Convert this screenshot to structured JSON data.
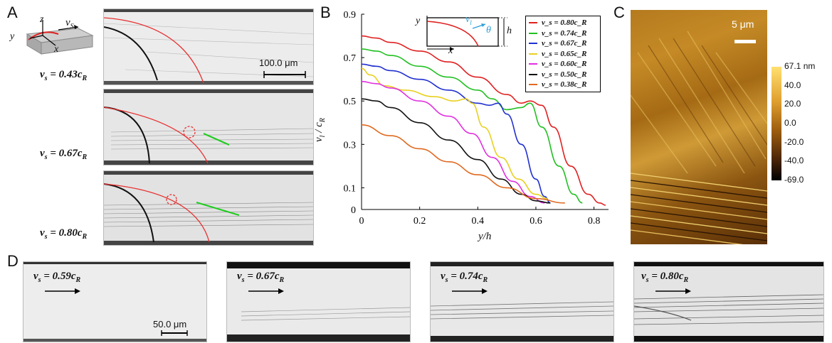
{
  "panel_letters": {
    "a": "A",
    "b": "B",
    "c": "C",
    "d": "D"
  },
  "panelA": {
    "schematic": {
      "y": "y",
      "z": "z",
      "x": "x",
      "vs": "v",
      "vs_sub": "S"
    },
    "scalebar": "100.0 μm",
    "rows": [
      {
        "label": "v",
        "label_sub": "s",
        "label_rest": " = 0.43c",
        "label_rest_sub": "R"
      },
      {
        "label": "v",
        "label_sub": "s",
        "label_rest": " = 0.67c",
        "label_rest_sub": "R"
      },
      {
        "label": "v",
        "label_sub": "s",
        "label_rest": " = 0.80c",
        "label_rest_sub": "R"
      }
    ]
  },
  "panelB": {
    "inset": {
      "y": "y",
      "x": "x",
      "h": "h",
      "vl": "v",
      "vl_sub": "l",
      "theta": "θ"
    },
    "ylabel": "v",
    "ylabel_sub": "l",
    "ylabel_rest": " / c",
    "ylabel_rest_sub": "R",
    "xlabel": "y/h",
    "xticks": [
      "0",
      "0.2",
      "0.4",
      "0.6",
      "0.8"
    ],
    "yticks": [
      "0",
      "0.1",
      "0.3",
      "0.5",
      "0.7",
      "0.9"
    ]
  },
  "chart_data": {
    "type": "line",
    "xlabel": "y/h",
    "ylabel": "v_l / c_R",
    "xlim": [
      0,
      0.85
    ],
    "ylim": [
      0,
      0.9
    ],
    "legend_position": "top-right",
    "series": [
      {
        "name": "v_s = 0.80c_R",
        "color": "#e02020",
        "x": [
          0,
          0.05,
          0.1,
          0.2,
          0.3,
          0.4,
          0.5,
          0.55,
          0.58,
          0.62,
          0.66,
          0.72,
          0.78,
          0.82,
          0.84
        ],
        "y": [
          0.8,
          0.79,
          0.77,
          0.73,
          0.68,
          0.61,
          0.53,
          0.49,
          0.5,
          0.48,
          0.38,
          0.2,
          0.07,
          0.03,
          0.02
        ]
      },
      {
        "name": "v_s = 0.74c_R",
        "color": "#22c022",
        "x": [
          0,
          0.05,
          0.1,
          0.2,
          0.3,
          0.4,
          0.45,
          0.5,
          0.55,
          0.58,
          0.62,
          0.68,
          0.73,
          0.76
        ],
        "y": [
          0.74,
          0.73,
          0.71,
          0.66,
          0.61,
          0.55,
          0.51,
          0.46,
          0.47,
          0.49,
          0.38,
          0.2,
          0.07,
          0.03
        ]
      },
      {
        "name": "v_s = 0.67c_R",
        "color": "#2030d0",
        "x": [
          0,
          0.05,
          0.1,
          0.2,
          0.3,
          0.4,
          0.44,
          0.47,
          0.5,
          0.55,
          0.6,
          0.63,
          0.65
        ],
        "y": [
          0.67,
          0.66,
          0.64,
          0.6,
          0.55,
          0.49,
          0.48,
          0.49,
          0.44,
          0.3,
          0.14,
          0.06,
          0.03
        ]
      },
      {
        "name": "v_s = 0.65c_R",
        "color": "#e8d020",
        "x": [
          0,
          0.03,
          0.08,
          0.15,
          0.25,
          0.32,
          0.36,
          0.38,
          0.42,
          0.48,
          0.54,
          0.6,
          0.64
        ],
        "y": [
          0.65,
          0.62,
          0.57,
          0.55,
          0.52,
          0.5,
          0.51,
          0.49,
          0.38,
          0.24,
          0.14,
          0.07,
          0.05
        ]
      },
      {
        "name": "v_s = 0.60c_R",
        "color": "#e030e0",
        "x": [
          0,
          0.05,
          0.1,
          0.2,
          0.3,
          0.38,
          0.45,
          0.52,
          0.58,
          0.63
        ],
        "y": [
          0.59,
          0.58,
          0.56,
          0.5,
          0.43,
          0.35,
          0.24,
          0.13,
          0.06,
          0.03
        ]
      },
      {
        "name": "v_s = 0.50c_R",
        "color": "#111111",
        "x": [
          0,
          0.05,
          0.1,
          0.2,
          0.3,
          0.4,
          0.48,
          0.55,
          0.6,
          0.65
        ],
        "y": [
          0.51,
          0.5,
          0.47,
          0.4,
          0.32,
          0.23,
          0.14,
          0.07,
          0.04,
          0.03
        ]
      },
      {
        "name": "v_s = 0.38c_R",
        "color": "#e06a20",
        "x": [
          0,
          0.1,
          0.2,
          0.3,
          0.4,
          0.5,
          0.6,
          0.7
        ],
        "y": [
          0.39,
          0.34,
          0.28,
          0.22,
          0.16,
          0.1,
          0.05,
          0.03
        ]
      }
    ]
  },
  "panelC": {
    "scalebar": "5 μm",
    "colorbar_ticks": [
      "67.1 nm",
      "40.0",
      "20.0",
      "0.0",
      "-20.0",
      "-40.0",
      "-69.0"
    ]
  },
  "panelD": {
    "scalebar": "50.0 μm",
    "frames": [
      {
        "label": "v",
        "label_sub": "s",
        "label_rest": " = 0.59c",
        "label_rest_sub": "R"
      },
      {
        "label": "v",
        "label_sub": "s",
        "label_rest": " = 0.67c",
        "label_rest_sub": "R"
      },
      {
        "label": "v",
        "label_sub": "s",
        "label_rest": " = 0.74c",
        "label_rest_sub": "R"
      },
      {
        "label": "v",
        "label_sub": "s",
        "label_rest": " = 0.80c",
        "label_rest_sub": "R"
      }
    ]
  }
}
